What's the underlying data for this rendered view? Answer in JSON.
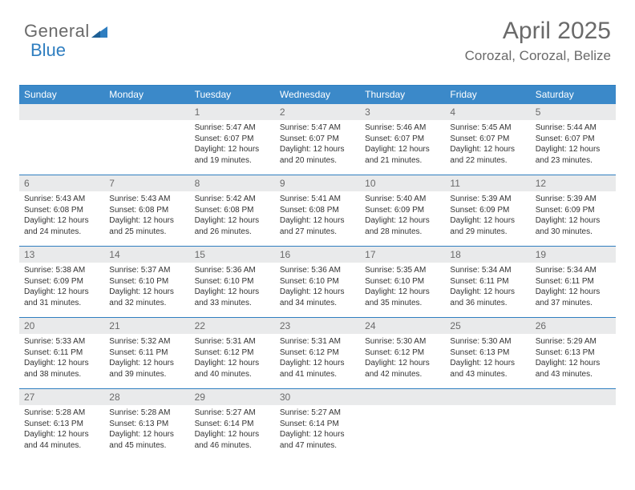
{
  "logo": {
    "general": "General",
    "blue": "Blue"
  },
  "header": {
    "month": "April 2025",
    "location": "Corozal, Corozal, Belize"
  },
  "colors": {
    "accent": "#3b89c9",
    "rule": "#2f7ec0",
    "daynum_bg": "#e9eaeb",
    "text_muted": "#6a6a6a",
    "text": "#333333",
    "background": "#ffffff"
  },
  "dayhead": [
    "Sunday",
    "Monday",
    "Tuesday",
    "Wednesday",
    "Thursday",
    "Friday",
    "Saturday"
  ],
  "weeks": [
    [
      {
        "num": "",
        "sunrise": "",
        "sunset": "",
        "daylight": ""
      },
      {
        "num": "",
        "sunrise": "",
        "sunset": "",
        "daylight": ""
      },
      {
        "num": "1",
        "sunrise": "Sunrise: 5:47 AM",
        "sunset": "Sunset: 6:07 PM",
        "daylight": "Daylight: 12 hours and 19 minutes."
      },
      {
        "num": "2",
        "sunrise": "Sunrise: 5:47 AM",
        "sunset": "Sunset: 6:07 PM",
        "daylight": "Daylight: 12 hours and 20 minutes."
      },
      {
        "num": "3",
        "sunrise": "Sunrise: 5:46 AM",
        "sunset": "Sunset: 6:07 PM",
        "daylight": "Daylight: 12 hours and 21 minutes."
      },
      {
        "num": "4",
        "sunrise": "Sunrise: 5:45 AM",
        "sunset": "Sunset: 6:07 PM",
        "daylight": "Daylight: 12 hours and 22 minutes."
      },
      {
        "num": "5",
        "sunrise": "Sunrise: 5:44 AM",
        "sunset": "Sunset: 6:07 PM",
        "daylight": "Daylight: 12 hours and 23 minutes."
      }
    ],
    [
      {
        "num": "6",
        "sunrise": "Sunrise: 5:43 AM",
        "sunset": "Sunset: 6:08 PM",
        "daylight": "Daylight: 12 hours and 24 minutes."
      },
      {
        "num": "7",
        "sunrise": "Sunrise: 5:43 AM",
        "sunset": "Sunset: 6:08 PM",
        "daylight": "Daylight: 12 hours and 25 minutes."
      },
      {
        "num": "8",
        "sunrise": "Sunrise: 5:42 AM",
        "sunset": "Sunset: 6:08 PM",
        "daylight": "Daylight: 12 hours and 26 minutes."
      },
      {
        "num": "9",
        "sunrise": "Sunrise: 5:41 AM",
        "sunset": "Sunset: 6:08 PM",
        "daylight": "Daylight: 12 hours and 27 minutes."
      },
      {
        "num": "10",
        "sunrise": "Sunrise: 5:40 AM",
        "sunset": "Sunset: 6:09 PM",
        "daylight": "Daylight: 12 hours and 28 minutes."
      },
      {
        "num": "11",
        "sunrise": "Sunrise: 5:39 AM",
        "sunset": "Sunset: 6:09 PM",
        "daylight": "Daylight: 12 hours and 29 minutes."
      },
      {
        "num": "12",
        "sunrise": "Sunrise: 5:39 AM",
        "sunset": "Sunset: 6:09 PM",
        "daylight": "Daylight: 12 hours and 30 minutes."
      }
    ],
    [
      {
        "num": "13",
        "sunrise": "Sunrise: 5:38 AM",
        "sunset": "Sunset: 6:09 PM",
        "daylight": "Daylight: 12 hours and 31 minutes."
      },
      {
        "num": "14",
        "sunrise": "Sunrise: 5:37 AM",
        "sunset": "Sunset: 6:10 PM",
        "daylight": "Daylight: 12 hours and 32 minutes."
      },
      {
        "num": "15",
        "sunrise": "Sunrise: 5:36 AM",
        "sunset": "Sunset: 6:10 PM",
        "daylight": "Daylight: 12 hours and 33 minutes."
      },
      {
        "num": "16",
        "sunrise": "Sunrise: 5:36 AM",
        "sunset": "Sunset: 6:10 PM",
        "daylight": "Daylight: 12 hours and 34 minutes."
      },
      {
        "num": "17",
        "sunrise": "Sunrise: 5:35 AM",
        "sunset": "Sunset: 6:10 PM",
        "daylight": "Daylight: 12 hours and 35 minutes."
      },
      {
        "num": "18",
        "sunrise": "Sunrise: 5:34 AM",
        "sunset": "Sunset: 6:11 PM",
        "daylight": "Daylight: 12 hours and 36 minutes."
      },
      {
        "num": "19",
        "sunrise": "Sunrise: 5:34 AM",
        "sunset": "Sunset: 6:11 PM",
        "daylight": "Daylight: 12 hours and 37 minutes."
      }
    ],
    [
      {
        "num": "20",
        "sunrise": "Sunrise: 5:33 AM",
        "sunset": "Sunset: 6:11 PM",
        "daylight": "Daylight: 12 hours and 38 minutes."
      },
      {
        "num": "21",
        "sunrise": "Sunrise: 5:32 AM",
        "sunset": "Sunset: 6:11 PM",
        "daylight": "Daylight: 12 hours and 39 minutes."
      },
      {
        "num": "22",
        "sunrise": "Sunrise: 5:31 AM",
        "sunset": "Sunset: 6:12 PM",
        "daylight": "Daylight: 12 hours and 40 minutes."
      },
      {
        "num": "23",
        "sunrise": "Sunrise: 5:31 AM",
        "sunset": "Sunset: 6:12 PM",
        "daylight": "Daylight: 12 hours and 41 minutes."
      },
      {
        "num": "24",
        "sunrise": "Sunrise: 5:30 AM",
        "sunset": "Sunset: 6:12 PM",
        "daylight": "Daylight: 12 hours and 42 minutes."
      },
      {
        "num": "25",
        "sunrise": "Sunrise: 5:30 AM",
        "sunset": "Sunset: 6:13 PM",
        "daylight": "Daylight: 12 hours and 43 minutes."
      },
      {
        "num": "26",
        "sunrise": "Sunrise: 5:29 AM",
        "sunset": "Sunset: 6:13 PM",
        "daylight": "Daylight: 12 hours and 43 minutes."
      }
    ],
    [
      {
        "num": "27",
        "sunrise": "Sunrise: 5:28 AM",
        "sunset": "Sunset: 6:13 PM",
        "daylight": "Daylight: 12 hours and 44 minutes."
      },
      {
        "num": "28",
        "sunrise": "Sunrise: 5:28 AM",
        "sunset": "Sunset: 6:13 PM",
        "daylight": "Daylight: 12 hours and 45 minutes."
      },
      {
        "num": "29",
        "sunrise": "Sunrise: 5:27 AM",
        "sunset": "Sunset: 6:14 PM",
        "daylight": "Daylight: 12 hours and 46 minutes."
      },
      {
        "num": "30",
        "sunrise": "Sunrise: 5:27 AM",
        "sunset": "Sunset: 6:14 PM",
        "daylight": "Daylight: 12 hours and 47 minutes."
      },
      {
        "num": "",
        "sunrise": "",
        "sunset": "",
        "daylight": ""
      },
      {
        "num": "",
        "sunrise": "",
        "sunset": "",
        "daylight": ""
      },
      {
        "num": "",
        "sunrise": "",
        "sunset": "",
        "daylight": ""
      }
    ]
  ]
}
